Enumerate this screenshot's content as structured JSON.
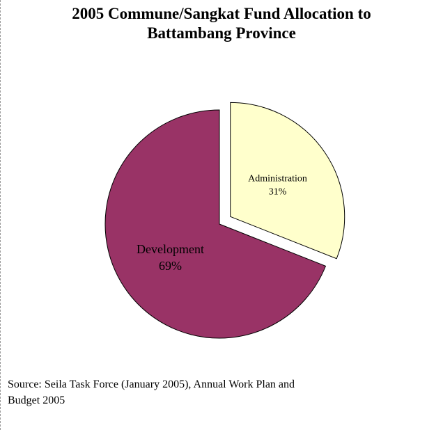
{
  "chart_data": {
    "type": "pie",
    "title_lines": [
      "2005 Commune/Sangkat Fund Allocation to",
      "Battambang Province"
    ],
    "slices": [
      {
        "label": "Administration",
        "percent_label": "31%",
        "value": 31,
        "color": "#FFFFCC",
        "exploded": true
      },
      {
        "label": "Development",
        "percent_label": "69%",
        "value": 69,
        "color": "#993366",
        "exploded": false
      }
    ],
    "legend": "none"
  },
  "source": {
    "line1": "Source: Seila Task Force (January 2005), Annual Work Plan and",
    "line2": "Budget 2005"
  }
}
